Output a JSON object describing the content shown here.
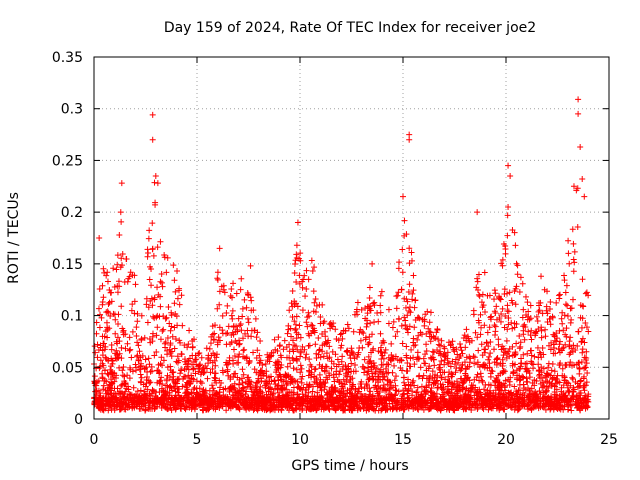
{
  "chart_data": {
    "type": "scatter",
    "title": "Day 159 of 2024, Rate Of TEC Index for receiver joe2",
    "xlabel": "GPS time / hours",
    "ylabel": "ROTI / TECUs",
    "xlim": [
      0,
      25
    ],
    "ylim": [
      0,
      0.35
    ],
    "x_ticks": [
      "0",
      "5",
      "10",
      "15",
      "20",
      "25"
    ],
    "y_ticks": [
      "0",
      "0.05",
      "0.1",
      "0.15",
      "0.2",
      "0.25",
      "0.3",
      "0.35"
    ],
    "grid": true,
    "marker": "+",
    "color": "#ff0000",
    "series": [
      {
        "name": "ROTI",
        "notable_points": [
          {
            "x": 2.85,
            "y": 0.294
          },
          {
            "x": 2.85,
            "y": 0.27
          },
          {
            "x": 3.0,
            "y": 0.235
          },
          {
            "x": 3.1,
            "y": 0.228
          },
          {
            "x": 1.35,
            "y": 0.228
          },
          {
            "x": 1.3,
            "y": 0.2
          },
          {
            "x": 15.3,
            "y": 0.275
          },
          {
            "x": 15.3,
            "y": 0.27
          },
          {
            "x": 15.0,
            "y": 0.215
          },
          {
            "x": 20.1,
            "y": 0.245
          },
          {
            "x": 20.2,
            "y": 0.235
          },
          {
            "x": 20.1,
            "y": 0.205
          },
          {
            "x": 23.5,
            "y": 0.309
          },
          {
            "x": 23.5,
            "y": 0.295
          },
          {
            "x": 23.6,
            "y": 0.263
          },
          {
            "x": 23.7,
            "y": 0.232
          },
          {
            "x": 23.8,
            "y": 0.215
          },
          {
            "x": 23.3,
            "y": 0.225
          },
          {
            "x": 9.9,
            "y": 0.19
          },
          {
            "x": 9.85,
            "y": 0.168
          },
          {
            "x": 18.6,
            "y": 0.2
          },
          {
            "x": 0.25,
            "y": 0.175
          },
          {
            "x": 6.1,
            "y": 0.165
          },
          {
            "x": 7.6,
            "y": 0.148
          },
          {
            "x": 13.5,
            "y": 0.15
          },
          {
            "x": 21.7,
            "y": 0.138
          }
        ]
      }
    ],
    "activity_envelope": [
      {
        "x": 0.0,
        "y": 0.06
      },
      {
        "x": 0.3,
        "y": 0.15
      },
      {
        "x": 0.8,
        "y": 0.13
      },
      {
        "x": 1.3,
        "y": 0.2
      },
      {
        "x": 1.8,
        "y": 0.14
      },
      {
        "x": 2.4,
        "y": 0.11
      },
      {
        "x": 2.9,
        "y": 0.23
      },
      {
        "x": 3.3,
        "y": 0.16
      },
      {
        "x": 3.9,
        "y": 0.15
      },
      {
        "x": 4.5,
        "y": 0.09
      },
      {
        "x": 5.0,
        "y": 0.06
      },
      {
        "x": 5.6,
        "y": 0.06
      },
      {
        "x": 6.1,
        "y": 0.15
      },
      {
        "x": 6.8,
        "y": 0.12
      },
      {
        "x": 7.5,
        "y": 0.13
      },
      {
        "x": 8.2,
        "y": 0.05
      },
      {
        "x": 8.8,
        "y": 0.07
      },
      {
        "x": 9.4,
        "y": 0.09
      },
      {
        "x": 9.9,
        "y": 0.17
      },
      {
        "x": 10.5,
        "y": 0.16
      },
      {
        "x": 11.2,
        "y": 0.1
      },
      {
        "x": 11.8,
        "y": 0.08
      },
      {
        "x": 12.4,
        "y": 0.09
      },
      {
        "x": 13.0,
        "y": 0.11
      },
      {
        "x": 13.6,
        "y": 0.14
      },
      {
        "x": 14.3,
        "y": 0.1
      },
      {
        "x": 15.0,
        "y": 0.2
      },
      {
        "x": 15.6,
        "y": 0.13
      },
      {
        "x": 16.2,
        "y": 0.1
      },
      {
        "x": 16.9,
        "y": 0.08
      },
      {
        "x": 17.5,
        "y": 0.07
      },
      {
        "x": 18.1,
        "y": 0.08
      },
      {
        "x": 18.6,
        "y": 0.18
      },
      {
        "x": 19.2,
        "y": 0.12
      },
      {
        "x": 19.7,
        "y": 0.13
      },
      {
        "x": 20.1,
        "y": 0.22
      },
      {
        "x": 20.6,
        "y": 0.14
      },
      {
        "x": 21.2,
        "y": 0.12
      },
      {
        "x": 21.8,
        "y": 0.13
      },
      {
        "x": 22.4,
        "y": 0.1
      },
      {
        "x": 22.9,
        "y": 0.15
      },
      {
        "x": 23.5,
        "y": 0.22
      },
      {
        "x": 24.0,
        "y": 0.13
      }
    ],
    "point_density_per_hour": 180
  }
}
